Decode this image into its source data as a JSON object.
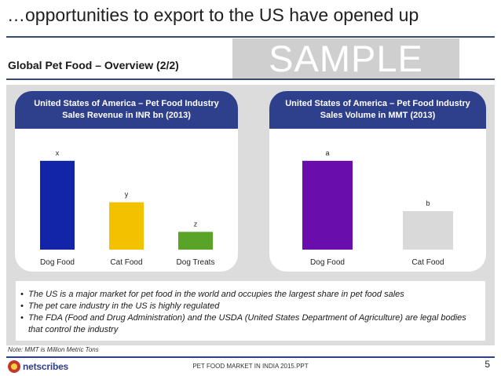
{
  "header": {
    "title": "…opportunities to export to the US have opened up",
    "subtitle": "Global Pet Food – Overview (2/2)",
    "watermark": "SAMPLE"
  },
  "left_panel": {
    "title_line1": "United States of America – Pet Food Industry",
    "title_line2": "Sales Revenue in INR bn (2013)"
  },
  "right_panel": {
    "title_line1": "United States of America – Pet Food Industry",
    "title_line2": "Sales Volume in MMT (2013)"
  },
  "chart_data": [
    {
      "type": "bar",
      "title": "United States of America – Pet Food Industry Sales Revenue in INR bn (2013)",
      "categories": [
        "Dog Food",
        "Cat Food",
        "Dog Treats"
      ],
      "values": [
        3,
        1.6,
        0.6
      ],
      "data_labels": [
        "x",
        "y",
        "z"
      ],
      "colors": [
        "#1224a8",
        "#f2c200",
        "#5aa329"
      ],
      "ylim": [
        0,
        3.5
      ],
      "grid": false
    },
    {
      "type": "bar",
      "title": "United States of America – Pet Food Industry Sales Volume in MMT (2013)",
      "categories": [
        "Dog Food",
        "Cat Food"
      ],
      "values": [
        3,
        1.3
      ],
      "data_labels": [
        "a",
        "b"
      ],
      "colors": [
        "#6a0dad",
        "#d9d9d9"
      ],
      "ylim": [
        0,
        3.5
      ],
      "grid": false
    }
  ],
  "bullets": [
    "The US is a major market for pet food in the world and occupies the largest share in pet food sales",
    "The pet care industry in the US is highly regulated",
    "The FDA (Food and Drug Administration) and the USDA (United States Department of Agriculture) are legal bodies that control the industry"
  ],
  "bullet_symbol": "•",
  "footer": {
    "note": "Note: MMT is Million Metric Tons",
    "logo_text": "netscribes",
    "center_text": "PET FOOD MARKET IN INDIA 2015.PPT",
    "page_number": "5"
  }
}
